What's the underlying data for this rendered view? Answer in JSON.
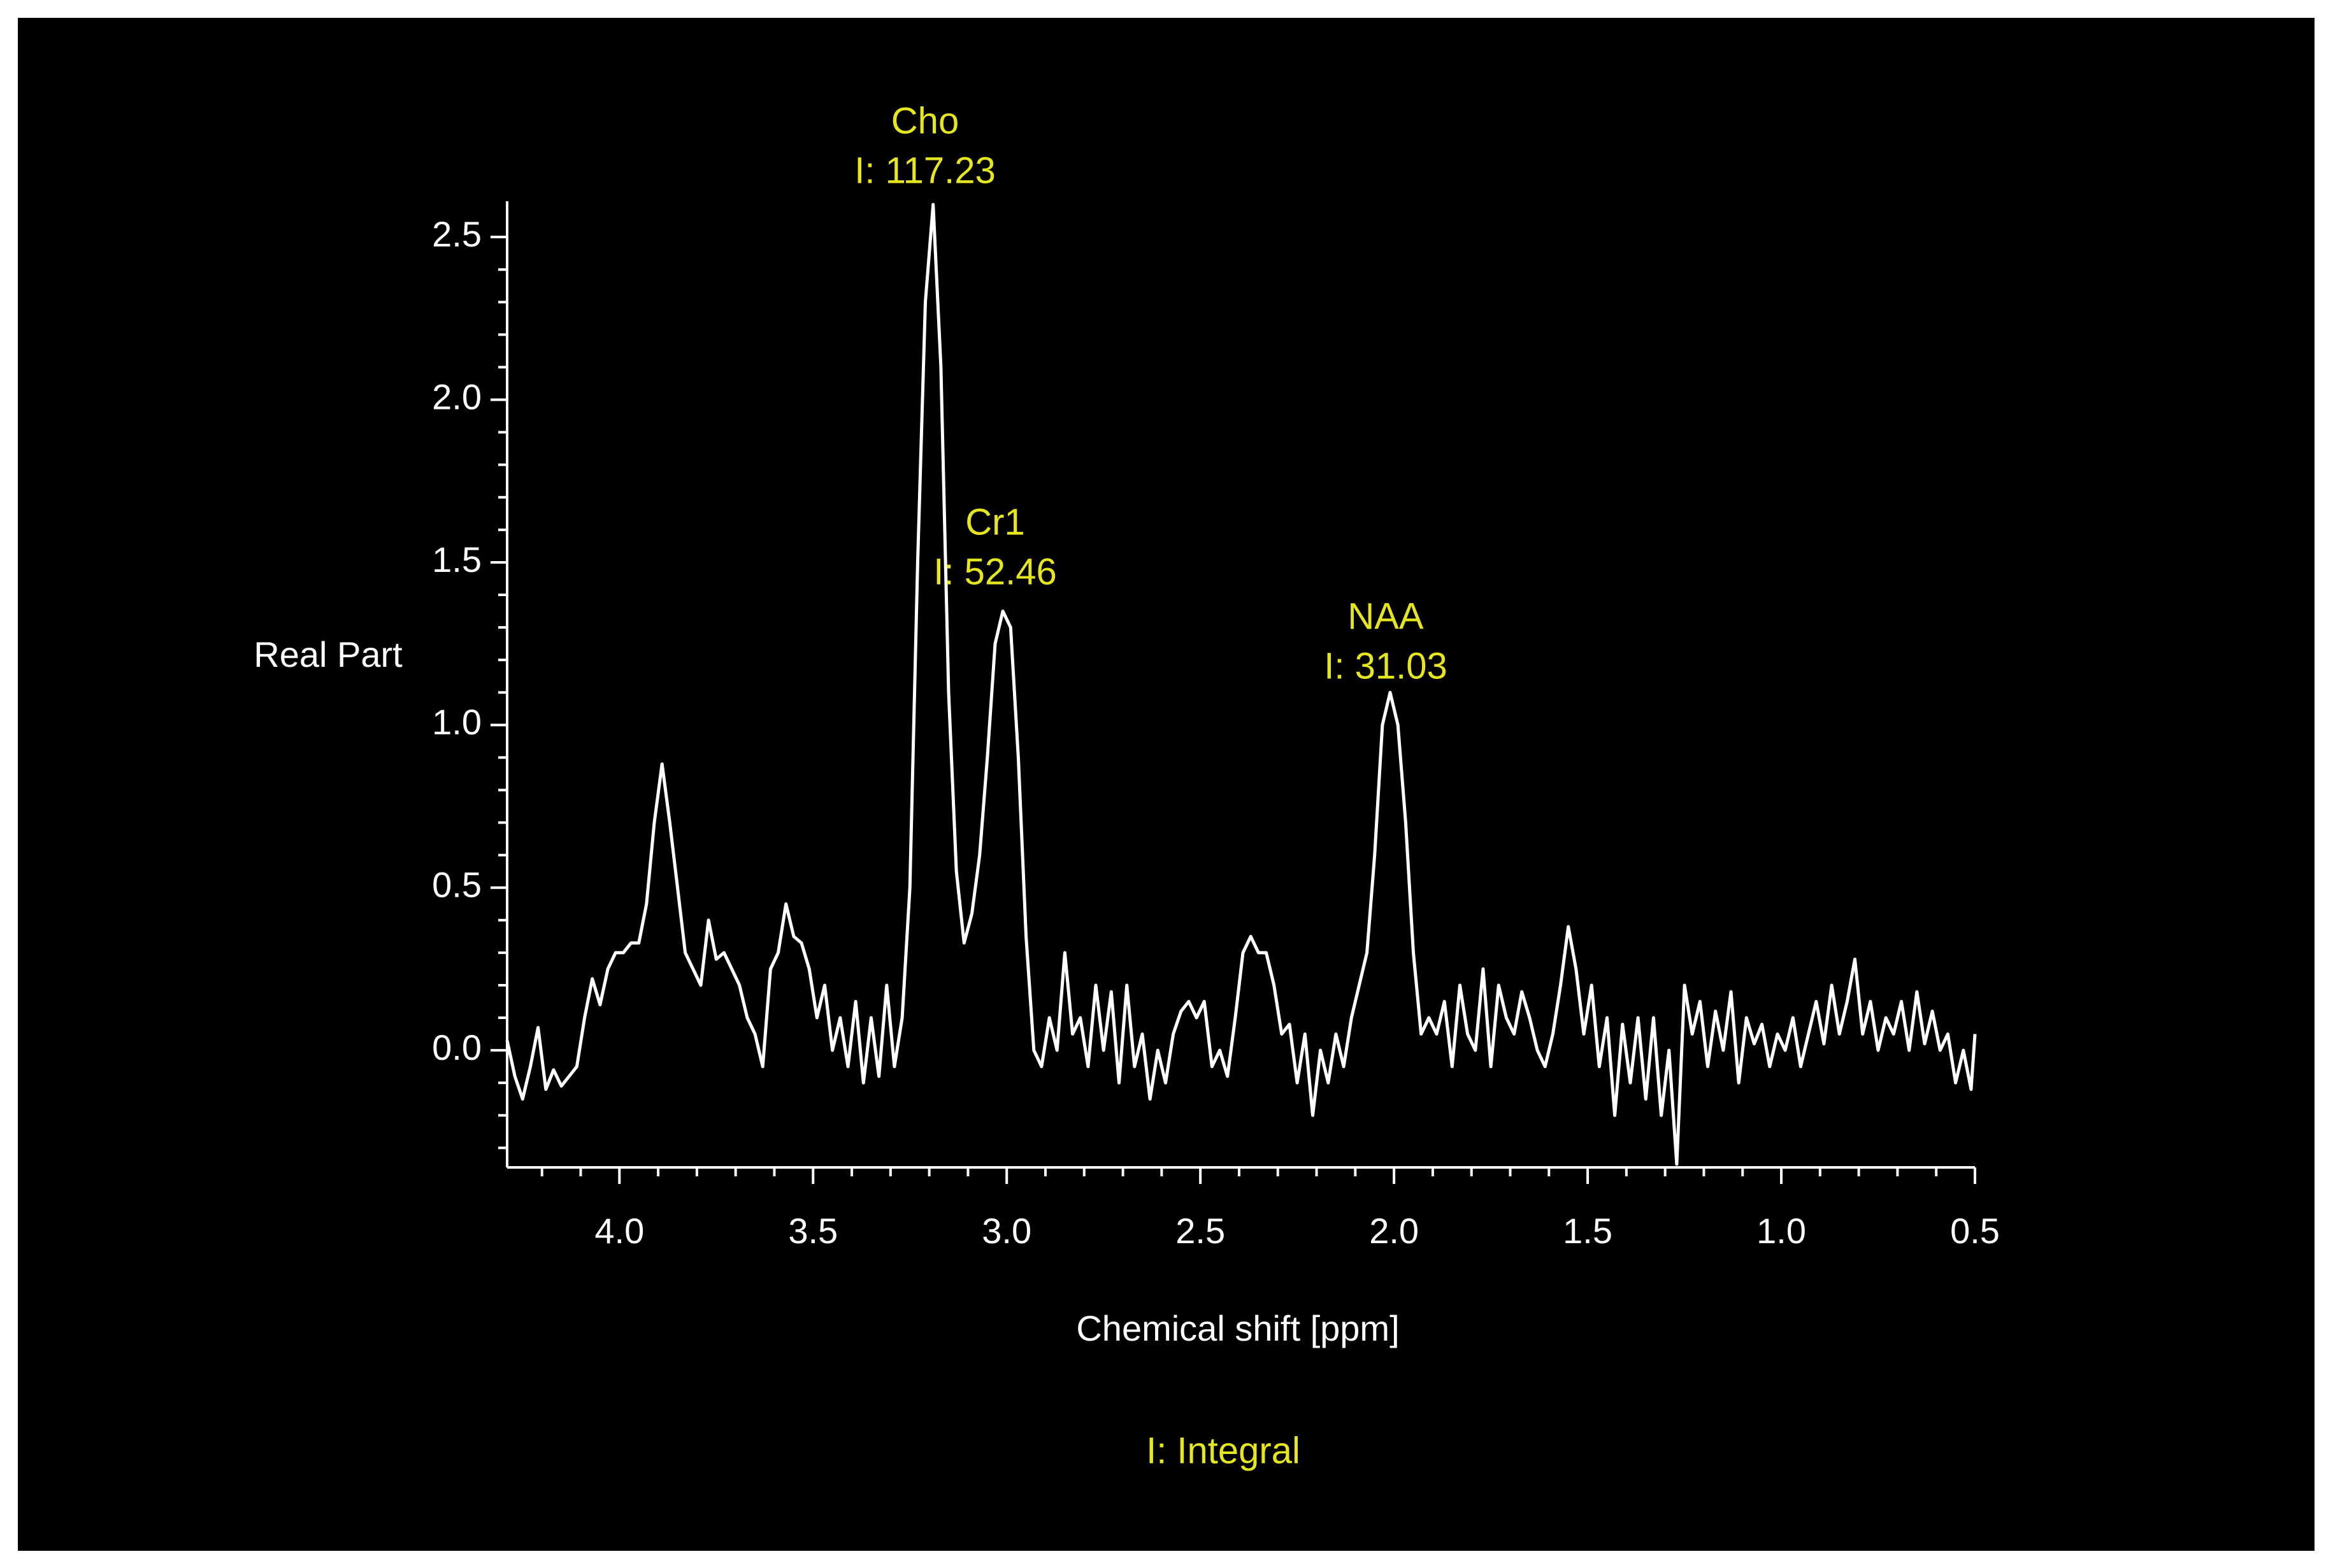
{
  "chart_data": {
    "type": "line",
    "xlabel": "Chemical shift [ppm]",
    "ylabel": "Real Part",
    "footer": "I: Integral",
    "xlim": [
      4.29,
      0.5
    ],
    "ylim": [
      -0.36,
      2.61
    ],
    "xticks": [
      {
        "value": 4,
        "label": "4.0"
      },
      3.5,
      {
        "value": 3,
        "label": "3.0"
      },
      2.5,
      {
        "value": 2,
        "label": "2.0"
      },
      1.5,
      {
        "value": 1,
        "label": "1.0"
      },
      0.5
    ],
    "yticks": [
      {
        "value": 0,
        "label": "0.0"
      },
      0.5,
      {
        "value": 1,
        "label": "1.0"
      },
      1.5,
      {
        "value": 2,
        "label": "2.0"
      },
      2.5
    ],
    "xminorticks": [
      4.2,
      4.1,
      3.9,
      3.8,
      3.7,
      3.6,
      3.4,
      3.3,
      3.2,
      3.1,
      2.9,
      2.8,
      2.7,
      2.6,
      2.4,
      2.3,
      2.2,
      2.1,
      1.9,
      1.8,
      1.7,
      1.6,
      1.4,
      1.3,
      1.2,
      1.1,
      0.9,
      0.8,
      0.7,
      0.6
    ],
    "yminorticks": [
      -0.3,
      -0.2,
      -0.1,
      0.1,
      0.2,
      0.3,
      0.4,
      0.6,
      0.7,
      0.8,
      0.9,
      1.1,
      1.2,
      1.3,
      1.4,
      1.6,
      1.7,
      1.8,
      1.9,
      2.1,
      2.2,
      2.3,
      2.4
    ],
    "annotations": [
      {
        "name": "Cho",
        "label": "I: 117.23"
      },
      {
        "name": "Cr1",
        "label": "I: 52.46"
      },
      {
        "name": "NAA",
        "label": "I: 31.03"
      }
    ],
    "x": [
      4.29,
      4.27,
      4.25,
      4.23,
      4.21,
      4.19,
      4.17,
      4.15,
      4.13,
      4.11,
      4.09,
      4.07,
      4.05,
      4.03,
      4.01,
      3.99,
      3.97,
      3.95,
      3.93,
      3.91,
      3.89,
      3.87,
      3.85,
      3.83,
      3.81,
      3.79,
      3.77,
      3.75,
      3.73,
      3.71,
      3.69,
      3.67,
      3.65,
      3.63,
      3.61,
      3.59,
      3.57,
      3.55,
      3.53,
      3.51,
      3.49,
      3.47,
      3.45,
      3.43,
      3.41,
      3.39,
      3.37,
      3.35,
      3.33,
      3.31,
      3.29,
      3.27,
      3.25,
      3.23,
      3.21,
      3.19,
      3.17,
      3.15,
      3.13,
      3.11,
      3.09,
      3.07,
      3.05,
      3.03,
      3.01,
      2.99,
      2.97,
      2.95,
      2.93,
      2.91,
      2.89,
      2.87,
      2.85,
      2.83,
      2.81,
      2.79,
      2.77,
      2.75,
      2.73,
      2.71,
      2.69,
      2.67,
      2.65,
      2.63,
      2.61,
      2.59,
      2.57,
      2.55,
      2.53,
      2.51,
      2.49,
      2.47,
      2.45,
      2.43,
      2.41,
      2.39,
      2.37,
      2.35,
      2.33,
      2.31,
      2.29,
      2.27,
      2.25,
      2.23,
      2.21,
      2.19,
      2.17,
      2.15,
      2.13,
      2.11,
      2.09,
      2.07,
      2.05,
      2.03,
      2.01,
      1.99,
      1.97,
      1.95,
      1.93,
      1.91,
      1.89,
      1.87,
      1.85,
      1.83,
      1.81,
      1.79,
      1.77,
      1.75,
      1.73,
      1.71,
      1.69,
      1.67,
      1.65,
      1.63,
      1.61,
      1.59,
      1.57,
      1.55,
      1.53,
      1.51,
      1.49,
      1.47,
      1.45,
      1.43,
      1.41,
      1.39,
      1.37,
      1.35,
      1.33,
      1.31,
      1.29,
      1.27,
      1.25,
      1.23,
      1.21,
      1.19,
      1.17,
      1.15,
      1.13,
      1.11,
      1.09,
      1.07,
      1.05,
      1.03,
      1.01,
      0.99,
      0.97,
      0.95,
      0.93,
      0.91,
      0.89,
      0.87,
      0.85,
      0.83,
      0.81,
      0.79,
      0.77,
      0.75,
      0.73,
      0.71,
      0.69,
      0.67,
      0.65,
      0.63,
      0.61,
      0.59,
      0.57,
      0.55,
      0.53,
      0.51,
      0.5
    ],
    "series": [
      {
        "color": "#ffffff",
        "values": [
          0.03,
          -0.08,
          -0.15,
          -0.05,
          0.07,
          -0.12,
          -0.06,
          -0.11,
          -0.08,
          -0.05,
          0.1,
          0.22,
          0.14,
          0.25,
          0.3,
          0.3,
          0.33,
          0.33,
          0.45,
          0.7,
          0.88,
          0.7,
          0.5,
          0.3,
          0.25,
          0.2,
          0.4,
          0.28,
          0.3,
          0.25,
          0.2,
          0.1,
          0.05,
          -0.05,
          0.25,
          0.3,
          0.45,
          0.35,
          0.33,
          0.25,
          0.1,
          0.2,
          0.0,
          0.1,
          -0.05,
          0.15,
          -0.1,
          0.1,
          -0.08,
          0.2,
          -0.05,
          0.1,
          0.5,
          1.5,
          2.3,
          2.6,
          2.1,
          1.1,
          0.55,
          0.33,
          0.42,
          0.6,
          0.9,
          1.25,
          1.35,
          1.3,
          0.9,
          0.35,
          0.0,
          -0.05,
          0.1,
          0.0,
          0.3,
          0.05,
          0.1,
          -0.05,
          0.2,
          0.0,
          0.18,
          -0.1,
          0.2,
          -0.05,
          0.05,
          -0.15,
          0.0,
          -0.1,
          0.05,
          0.12,
          0.15,
          0.1,
          0.15,
          -0.05,
          0.0,
          -0.08,
          0.1,
          0.3,
          0.35,
          0.3,
          0.3,
          0.2,
          0.05,
          0.08,
          -0.1,
          0.05,
          -0.2,
          0.0,
          -0.1,
          0.05,
          -0.05,
          0.1,
          0.2,
          0.3,
          0.6,
          1.0,
          1.1,
          1.0,
          0.7,
          0.3,
          0.05,
          0.1,
          0.05,
          0.15,
          -0.05,
          0.2,
          0.05,
          0.0,
          0.25,
          -0.05,
          0.2,
          0.1,
          0.05,
          0.18,
          0.1,
          0.0,
          -0.05,
          0.05,
          0.2,
          0.38,
          0.25,
          0.05,
          0.2,
          -0.05,
          0.1,
          -0.2,
          0.08,
          -0.1,
          0.1,
          -0.15,
          0.1,
          -0.2,
          0.0,
          -0.35,
          0.2,
          0.05,
          0.15,
          -0.05,
          0.12,
          0.0,
          0.18,
          -0.1,
          0.1,
          0.02,
          0.08,
          -0.05,
          0.05,
          0.0,
          0.1,
          -0.05,
          0.05,
          0.15,
          0.02,
          0.2,
          0.05,
          0.15,
          0.28,
          0.05,
          0.15,
          0.0,
          0.1,
          0.05,
          0.15,
          0.0,
          0.18,
          0.02,
          0.12,
          0.0,
          0.05,
          -0.1,
          0.0,
          -0.12,
          0.05
        ]
      }
    ]
  }
}
